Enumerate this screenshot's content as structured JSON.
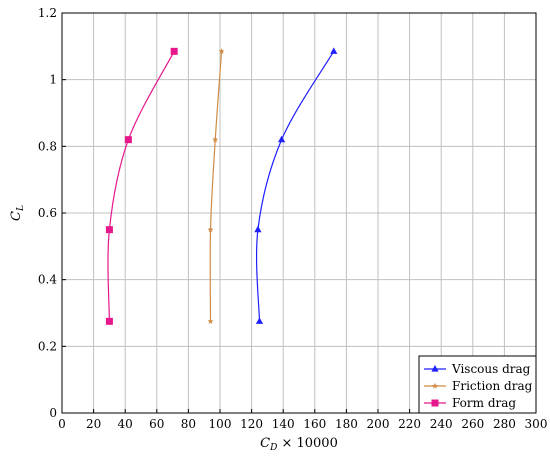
{
  "chart_data": {
    "type": "line",
    "xlabel": "C_D × 10000",
    "ylabel": "C_L",
    "xlim": [
      0,
      300
    ],
    "ylim": [
      0,
      1.2
    ],
    "xticks": [
      0,
      20,
      40,
      60,
      80,
      100,
      120,
      140,
      160,
      180,
      200,
      220,
      240,
      260,
      280,
      300
    ],
    "yticks": [
      0,
      0.2,
      0.4,
      0.6,
      0.8,
      1,
      1.2
    ],
    "grid": true,
    "legend_position": "bottom-right",
    "series": [
      {
        "name": "Viscous drag",
        "color": "#1f1fff",
        "marker": "triangle",
        "x": [
          125,
          124,
          139,
          172
        ],
        "y": [
          0.275,
          0.55,
          0.82,
          1.085
        ]
      },
      {
        "name": "Friction drag",
        "color": "#d08c46",
        "marker": "star",
        "x": [
          94,
          94,
          97,
          101
        ],
        "y": [
          0.275,
          0.55,
          0.82,
          1.085
        ]
      },
      {
        "name": "Form drag",
        "color": "#e6168c",
        "marker": "square",
        "x": [
          30,
          30,
          42,
          71
        ],
        "y": [
          0.275,
          0.55,
          0.82,
          1.085
        ]
      }
    ]
  }
}
